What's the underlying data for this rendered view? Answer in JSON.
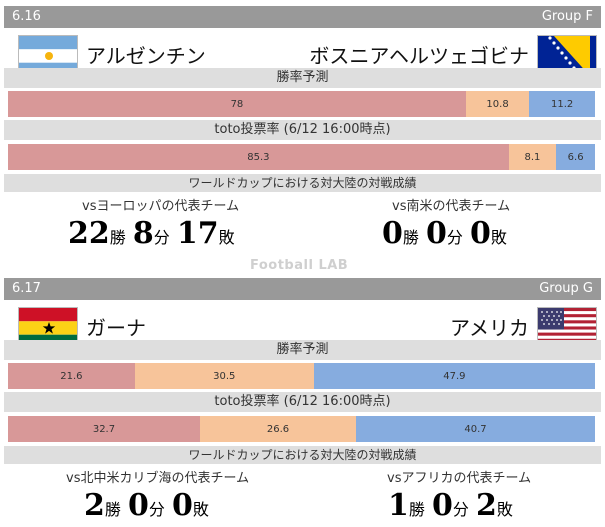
{
  "watermark": "Football LAB",
  "matches": [
    {
      "date": "6.16",
      "group": "Group F",
      "home": {
        "name": "アルゼンチン",
        "flag": "argentina-flag"
      },
      "away": {
        "name": "ボスニアヘルツェゴビナ",
        "flag": "bosnia-flag"
      },
      "win_prob": {
        "label": "勝率予測",
        "home": 78,
        "draw": 10.8,
        "away": 11.2,
        "home_text": "78",
        "draw_text": "10.8",
        "away_text": "11.2"
      },
      "toto": {
        "label": "toto投票率 (6/12 16:00時点)",
        "home": 85.3,
        "draw": 8.1,
        "away": 6.6,
        "home_text": "85.3",
        "draw_text": "8.1",
        "away_text": "6.6"
      },
      "record_label": "ワールドカップにおける対大陸の対戦成績",
      "home_vs": "vsヨーロッパの代表チーム",
      "away_vs": "vs南米の代表チーム",
      "home_record": {
        "w": "22",
        "d": "8",
        "l": "17"
      },
      "away_record": {
        "w": "0",
        "d": "0",
        "l": "0"
      }
    },
    {
      "date": "6.17",
      "group": "Group G",
      "home": {
        "name": "ガーナ",
        "flag": "ghana-flag"
      },
      "away": {
        "name": "アメリカ",
        "flag": "usa-flag"
      },
      "win_prob": {
        "label": "勝率予測",
        "home": 21.6,
        "draw": 30.5,
        "away": 47.9,
        "home_text": "21.6",
        "draw_text": "30.5",
        "away_text": "47.9"
      },
      "toto": {
        "label": "toto投票率 (6/12 16:00時点)",
        "home": 32.7,
        "draw": 26.6,
        "away": 40.7,
        "home_text": "32.7",
        "draw_text": "26.6",
        "away_text": "40.7"
      },
      "record_label": "ワールドカップにおける対大陸の対戦成績",
      "home_vs": "vs北中米カリブ海の代表チーム",
      "away_vs": "vsアフリカの代表チーム",
      "home_record": {
        "w": "2",
        "d": "0",
        "l": "0"
      },
      "away_record": {
        "w": "1",
        "d": "0",
        "l": "2"
      }
    }
  ],
  "units": {
    "win": "勝",
    "draw": "分",
    "loss": "敗"
  }
}
